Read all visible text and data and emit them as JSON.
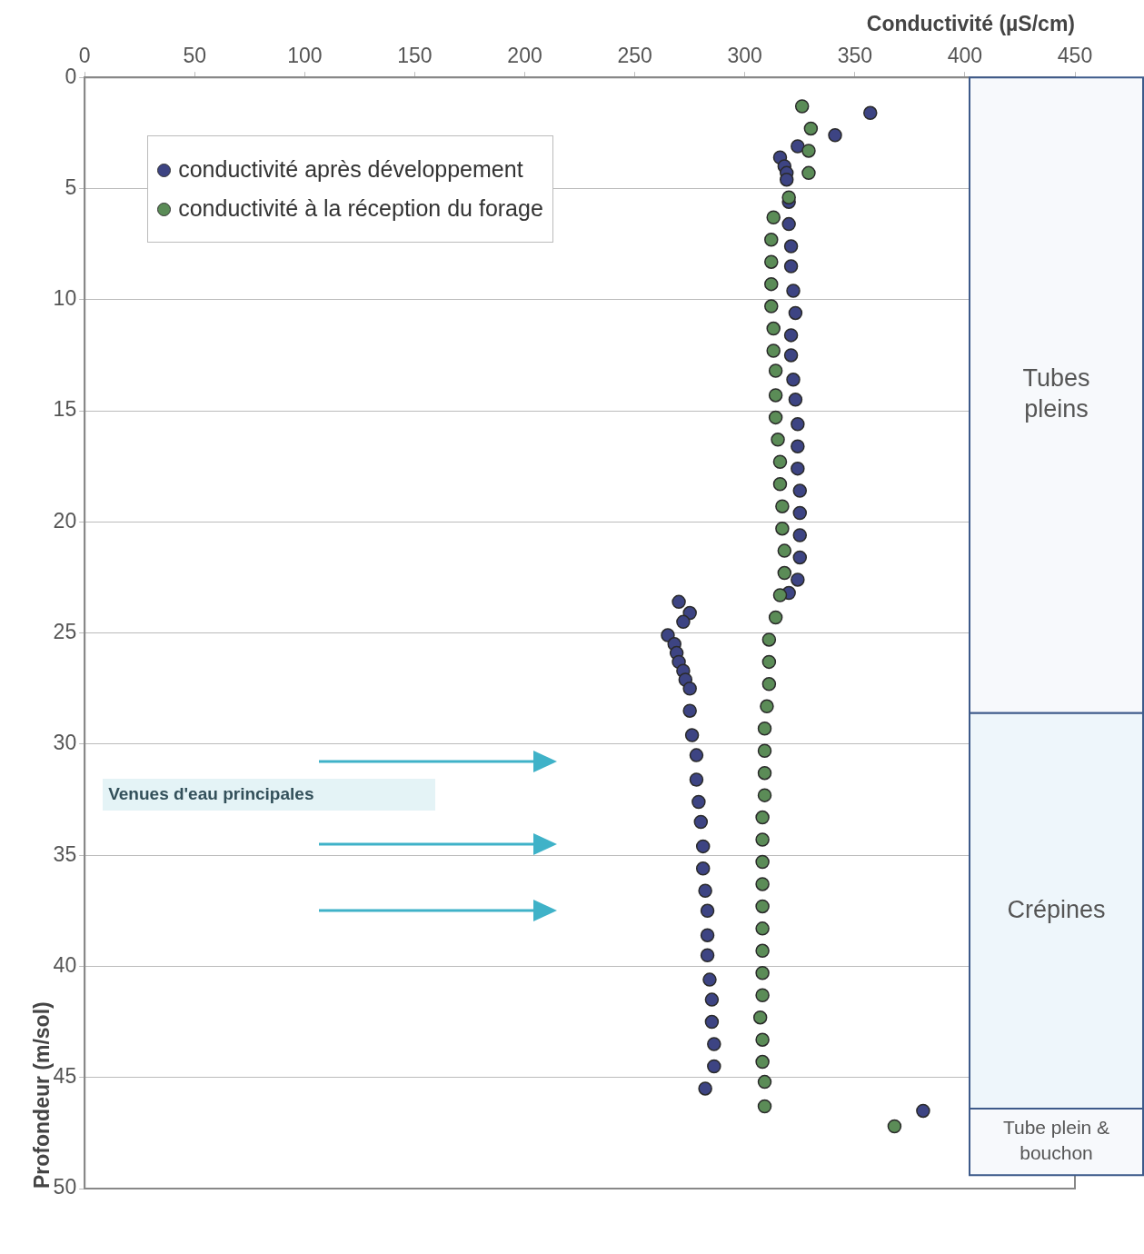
{
  "chart_data": {
    "type": "scatter",
    "xlabel": "Conductivité (µS/cm)",
    "ylabel": "Profondeur (m/sol)",
    "xlim": [
      0,
      450
    ],
    "xticks": [
      0,
      50,
      100,
      150,
      200,
      250,
      300,
      350,
      400,
      450
    ],
    "ylim": [
      50,
      0
    ],
    "yticks": [
      0,
      5,
      10,
      15,
      20,
      25,
      30,
      35,
      40,
      45,
      50
    ],
    "grid": "y",
    "legend": "top left",
    "marker": "circle",
    "series": [
      {
        "name": "conductivité après développement",
        "color": "#3d4483",
        "x": [
          357,
          341,
          324,
          316,
          318,
          319,
          319,
          320,
          320,
          321,
          321,
          322,
          323,
          321,
          321,
          322,
          323,
          324,
          324,
          324,
          325,
          325,
          325,
          325,
          324,
          320,
          270,
          275,
          272,
          265,
          268,
          269,
          270,
          272,
          273,
          275,
          275,
          276,
          278,
          278,
          279,
          280,
          281,
          281,
          282,
          283,
          283,
          283,
          284,
          285,
          285,
          286,
          286,
          282,
          381
        ],
        "values": [
          1.6,
          2.6,
          3.1,
          3.6,
          4.0,
          4.3,
          4.6,
          5.6,
          6.6,
          7.6,
          8.5,
          9.6,
          10.6,
          11.6,
          12.5,
          13.6,
          14.5,
          15.6,
          16.6,
          17.6,
          18.6,
          19.6,
          20.6,
          21.6,
          22.6,
          23.2,
          23.6,
          24.1,
          24.5,
          25.1,
          25.5,
          25.9,
          26.3,
          26.7,
          27.1,
          27.5,
          28.5,
          29.6,
          30.5,
          31.6,
          32.6,
          33.5,
          34.6,
          35.6,
          36.6,
          37.5,
          38.6,
          39.5,
          40.6,
          41.5,
          42.5,
          43.5,
          44.5,
          45.5,
          46.5
        ]
      },
      {
        "name": "conductivité à la réception du forage",
        "color": "#5b8c57",
        "x": [
          326,
          330,
          329,
          329,
          320,
          313,
          312,
          312,
          312,
          312,
          313,
          313,
          314,
          314,
          314,
          315,
          316,
          316,
          317,
          317,
          318,
          318,
          316,
          314,
          311,
          311,
          311,
          310,
          309,
          309,
          309,
          309,
          308,
          308,
          308,
          308,
          308,
          308,
          308,
          308,
          308,
          307,
          308,
          308,
          309,
          309,
          368
        ],
        "values": [
          1.3,
          2.3,
          3.3,
          4.3,
          5.4,
          6.3,
          7.3,
          8.3,
          9.3,
          10.3,
          11.3,
          12.3,
          13.2,
          14.3,
          15.3,
          16.3,
          17.3,
          18.3,
          19.3,
          20.3,
          21.3,
          22.3,
          23.3,
          24.3,
          25.3,
          26.3,
          27.3,
          28.3,
          29.3,
          30.3,
          31.3,
          32.3,
          33.3,
          34.3,
          35.3,
          36.3,
          37.3,
          38.3,
          39.3,
          40.3,
          41.3,
          42.3,
          43.3,
          44.3,
          45.2,
          46.3,
          47.2
        ]
      }
    ],
    "bands": [
      {
        "axis": "y",
        "from": 0,
        "to": 28.6,
        "label": "Tubes pleins",
        "color": "#f7f9fc"
      },
      {
        "axis": "y",
        "from": 28.6,
        "to": 46.4,
        "label": "Crépines",
        "color": "#eef6fb"
      },
      {
        "axis": "y",
        "from": 46.4,
        "to": 49.4,
        "label": "Tube plein & bouchon",
        "color": "#f7f9fc"
      }
    ],
    "annotations": [
      "Venues d'eau principales"
    ]
  }
}
